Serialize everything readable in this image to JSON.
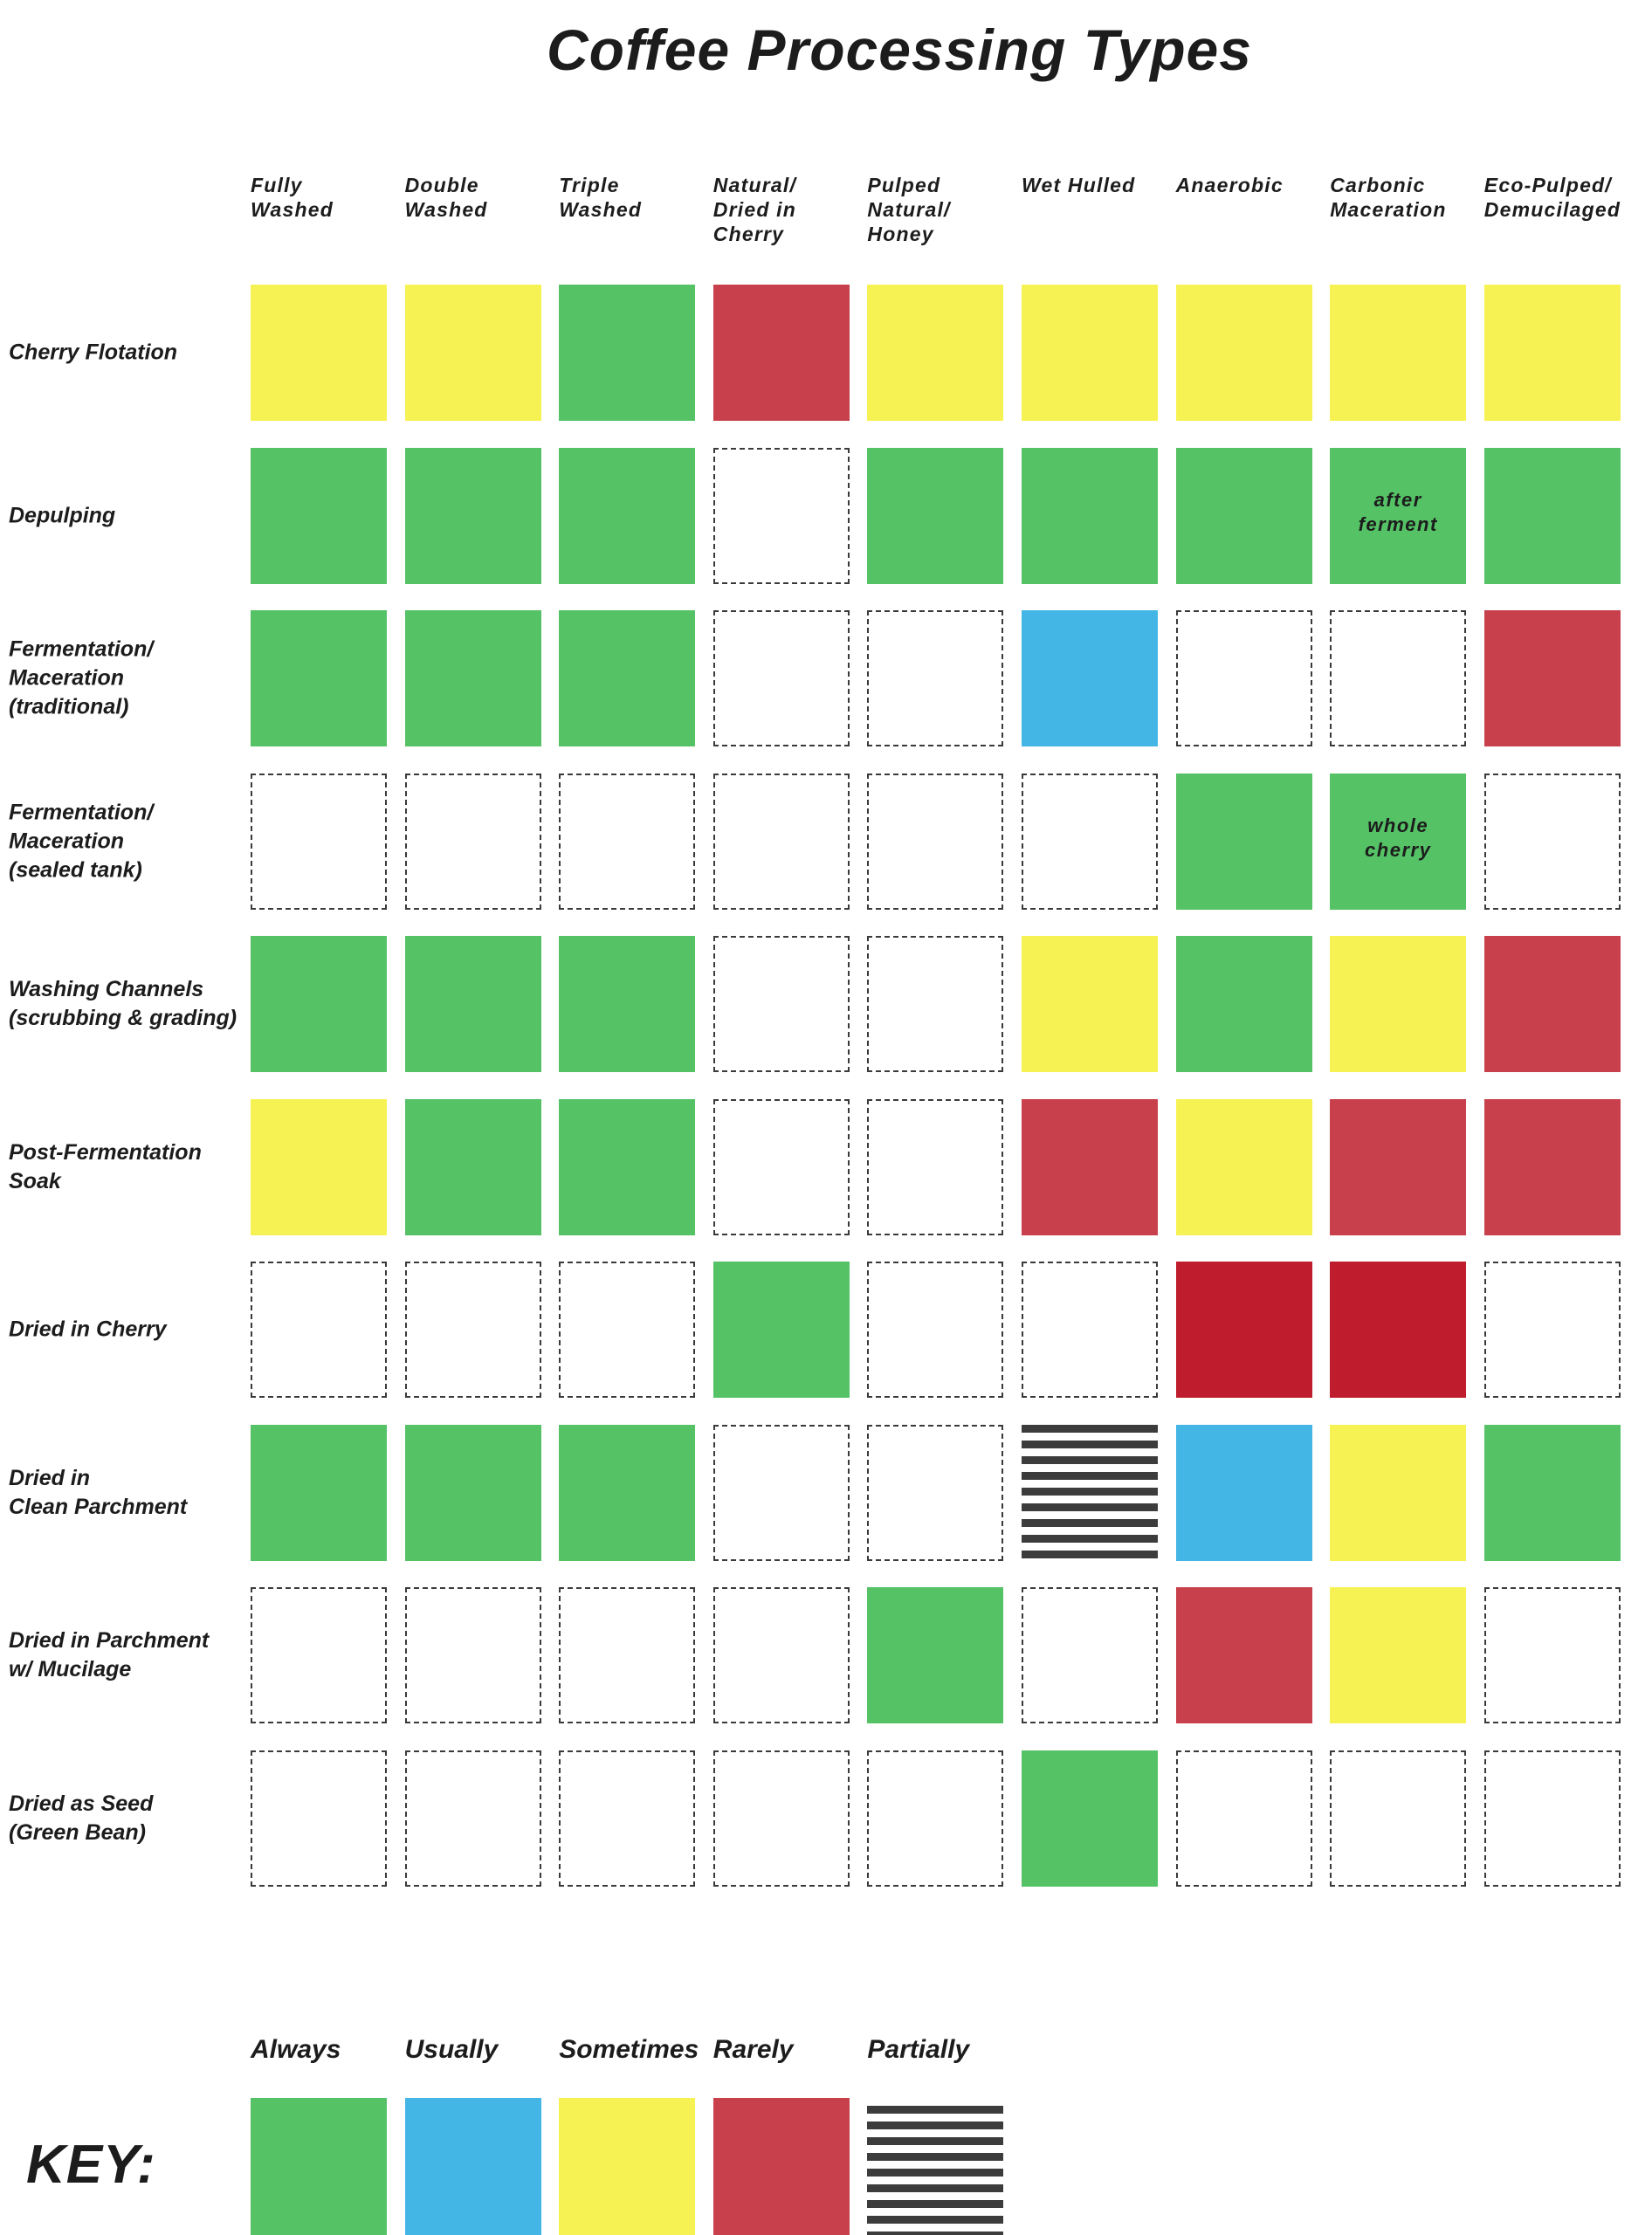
{
  "title": "Coffee Processing Types",
  "colors": {
    "always": "#55c266",
    "usually": "#43b6e6",
    "sometimes": "#f6f253",
    "rarely": "#c8404c",
    "never_strong": "#bf1d2d",
    "partial_stripe": "#3c3c3c"
  },
  "chart_data": {
    "type": "table",
    "title": "Coffee Processing Types",
    "columns": [
      "Fully\nWashed",
      "Double\nWashed",
      "Triple\nWashed",
      "Natural/\nDried in Cherry",
      "Pulped Natural/\nHoney",
      "Wet Hulled",
      "Anaerobic",
      "Carbonic\nMaceration",
      "Eco-Pulped/\nDemucilaged"
    ],
    "rows": [
      "Cherry Flotation",
      "Depulping",
      "Fermentation/\nMaceration\n(traditional)",
      "Fermentation/\nMaceration\n(sealed tank)",
      "Washing Channels\n(scrubbing & grading)",
      "Post-Fermentation\nSoak",
      "Dried in Cherry",
      "Dried in\nClean Parchment",
      "Dried in Parchment\nw/ Mucilage",
      "Dried as Seed\n(Green Bean)"
    ],
    "values": [
      [
        "sometimes",
        "sometimes",
        "always",
        "rarely",
        "sometimes",
        "sometimes",
        "sometimes",
        "sometimes",
        "sometimes"
      ],
      [
        "always",
        "always",
        "always",
        "none",
        "always",
        "always",
        "always",
        "always",
        "always"
      ],
      [
        "always",
        "always",
        "always",
        "none",
        "none",
        "usually",
        "none",
        "none",
        "rarely"
      ],
      [
        "none",
        "none",
        "none",
        "none",
        "none",
        "none",
        "always",
        "always",
        "none"
      ],
      [
        "always",
        "always",
        "always",
        "none",
        "none",
        "sometimes",
        "always",
        "sometimes",
        "rarely"
      ],
      [
        "sometimes",
        "always",
        "always",
        "none",
        "none",
        "rarely",
        "sometimes",
        "rarely",
        "rarely"
      ],
      [
        "none",
        "none",
        "none",
        "always",
        "none",
        "none",
        "never_strong",
        "never_strong",
        "none"
      ],
      [
        "always",
        "always",
        "always",
        "none",
        "none",
        "partial",
        "usually",
        "sometimes",
        "always"
      ],
      [
        "none",
        "none",
        "none",
        "none",
        "always",
        "none",
        "rarely",
        "sometimes",
        "none"
      ],
      [
        "none",
        "none",
        "none",
        "none",
        "none",
        "always",
        "none",
        "none",
        "none"
      ]
    ],
    "annotations": [
      {
        "row": 1,
        "col": 7,
        "text": "after\nferment"
      },
      {
        "row": 3,
        "col": 7,
        "text": "whole\ncherry"
      }
    ],
    "legend": {
      "title": "KEY:",
      "placement": "bottom",
      "entries": [
        {
          "label": "Always",
          "key": "always"
        },
        {
          "label": "Usually",
          "key": "usually"
        },
        {
          "label": "Sometimes",
          "key": "sometimes"
        },
        {
          "label": "Rarely",
          "key": "rarely"
        },
        {
          "label": "Partially",
          "key": "partial"
        }
      ]
    }
  }
}
